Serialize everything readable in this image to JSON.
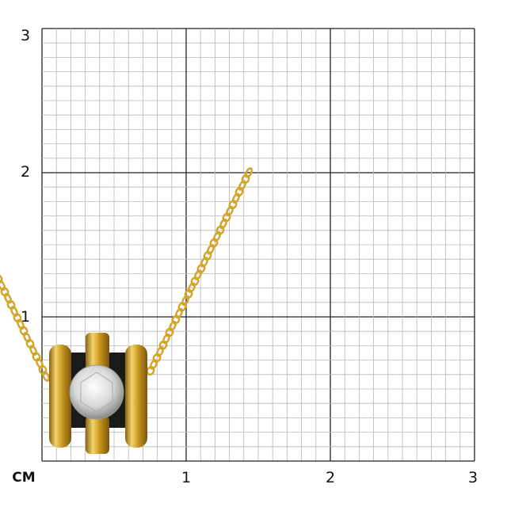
{
  "scale": {
    "unit_label": "CM",
    "x_ticks": [
      "1",
      "2",
      "3"
    ],
    "y_ticks": [
      "1",
      "2",
      "3"
    ]
  },
  "product": {
    "metal_color": "#d4a52a",
    "stone_color": "#e8e8e8",
    "inlay_color": "#1a1a1a"
  }
}
